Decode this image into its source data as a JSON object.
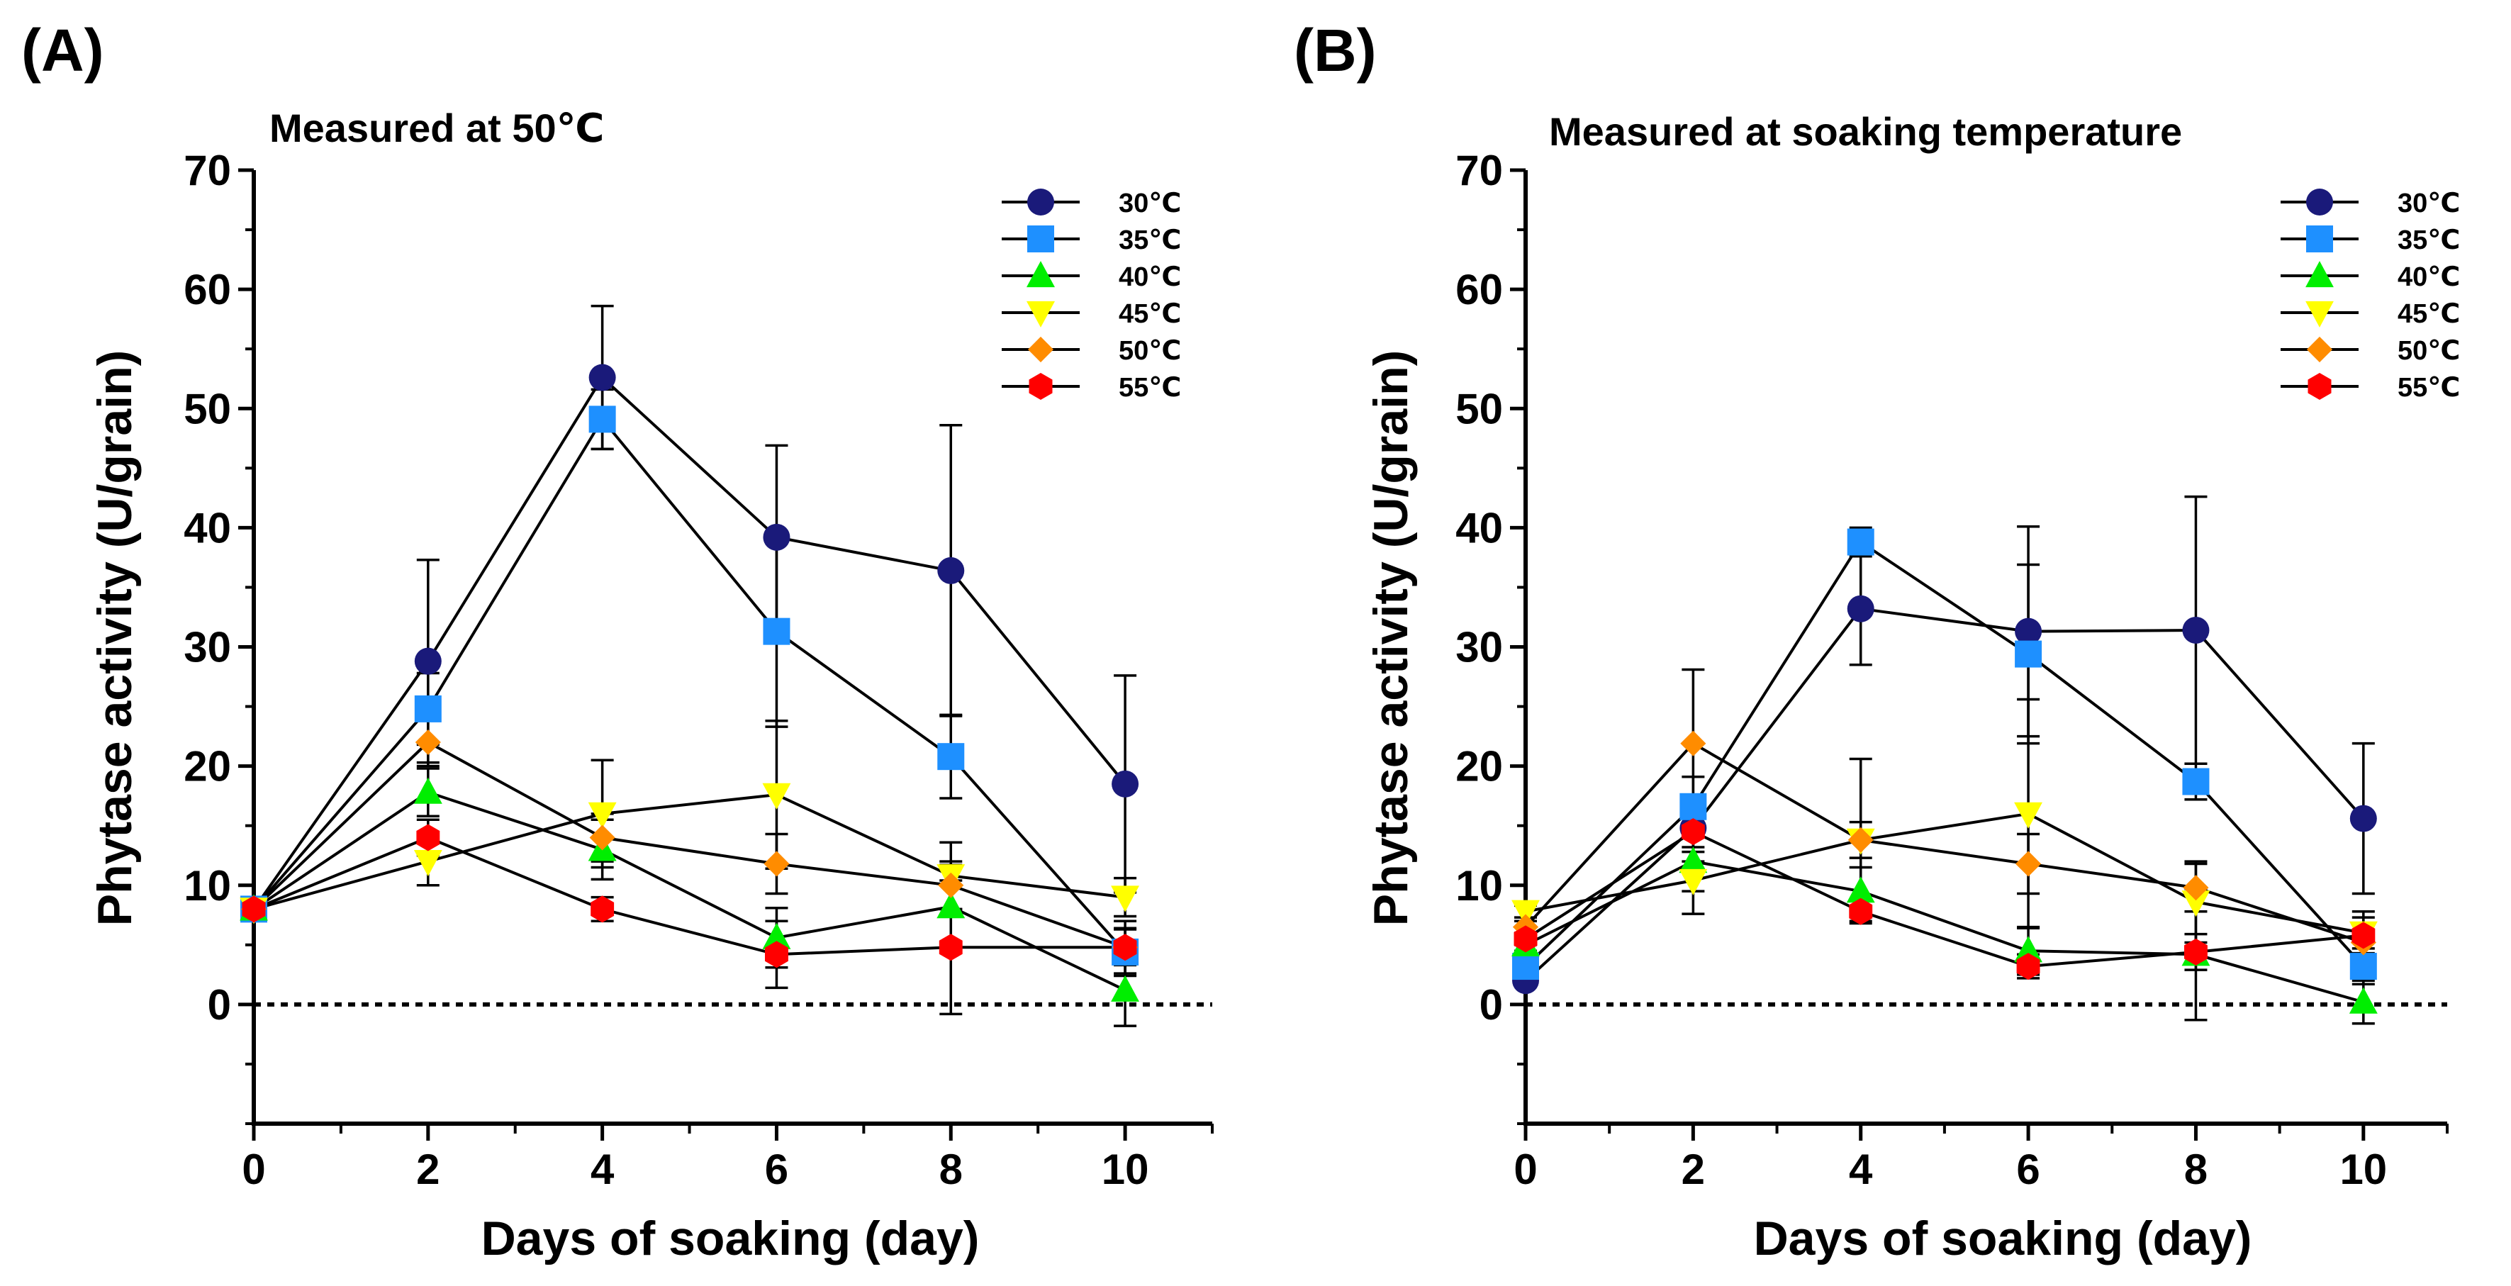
{
  "chart_data": [
    {
      "type": "line",
      "panel_label": "(A)",
      "title": "Measured at 50℃",
      "xlabel": "Days of soaking (day)",
      "ylabel": "Phytase activity (U/grain)",
      "x": [
        0,
        2,
        4,
        6,
        8,
        10
      ],
      "xticks": [
        0,
        2,
        4,
        6,
        8,
        10
      ],
      "yticks": [
        0,
        10,
        20,
        30,
        40,
        50,
        60,
        70
      ],
      "xlim": [
        0,
        11
      ],
      "ylim": [
        -10,
        70
      ],
      "reference_line": 0,
      "legend_position": "top-right",
      "series": [
        {
          "name": "30℃",
          "color": "#1a1a7a",
          "marker": "circle",
          "values": [
            8,
            28.8,
            52.6,
            39.2,
            36.4,
            18.5
          ],
          "errors": [
            0,
            8.5,
            6.0,
            7.7,
            12.2,
            9.1
          ]
        },
        {
          "name": "35℃",
          "color": "#1e90ff",
          "marker": "square",
          "values": [
            8,
            24.8,
            49.1,
            31.3,
            20.8,
            4.4
          ],
          "errors": [
            0,
            3.0,
            2.5,
            8.0,
            3.5,
            2.0
          ]
        },
        {
          "name": "40℃",
          "color": "#00ee00",
          "marker": "triangle-up",
          "values": [
            8,
            17.8,
            13.0,
            5.6,
            8.2,
            1.2
          ],
          "errors": [
            0,
            2.0,
            2.5,
            2.5,
            3.5,
            3.0
          ]
        },
        {
          "name": "45℃",
          "color": "#ffff00",
          "marker": "triangle-down",
          "values": [
            8,
            12.0,
            16.0,
            17.6,
            10.8,
            9.0
          ],
          "errors": [
            0,
            2.0,
            4.5,
            6.2,
            2.8,
            1.6
          ]
        },
        {
          "name": "50℃",
          "color": "#ff8c00",
          "marker": "diamond",
          "values": [
            8,
            22.0,
            14.0,
            11.8,
            10.0,
            4.8
          ],
          "errors": [
            0,
            2.0,
            2.0,
            2.5,
            2.0,
            1.5
          ]
        },
        {
          "name": "55℃",
          "color": "#ff0000",
          "marker": "hexagon",
          "values": [
            8,
            14.0,
            8.0,
            4.2,
            4.8,
            4.8
          ],
          "errors": [
            0,
            1.5,
            1.0,
            2.8,
            5.6,
            2.2
          ]
        }
      ]
    },
    {
      "type": "line",
      "panel_label": "(B)",
      "title": "Measured at soaking temperature",
      "xlabel": "Days of soaking (day)",
      "ylabel": "Phytase activity (U/grain)",
      "x": [
        0,
        2,
        4,
        6,
        8,
        10
      ],
      "xticks": [
        0,
        2,
        4,
        6,
        8,
        10
      ],
      "yticks": [
        0,
        10,
        20,
        30,
        40,
        50,
        60,
        70
      ],
      "xlim": [
        0,
        11
      ],
      "ylim": [
        -10,
        70
      ],
      "reference_line": 0,
      "legend_position": "top-right",
      "series": [
        {
          "name": "30℃",
          "color": "#1a1a7a",
          "marker": "circle",
          "values": [
            2.0,
            14.8,
            33.2,
            31.3,
            31.4,
            15.6
          ],
          "errors": [
            0.5,
            2.0,
            4.7,
            8.8,
            11.2,
            6.3
          ]
        },
        {
          "name": "35℃",
          "color": "#1e90ff",
          "marker": "square",
          "values": [
            3.2,
            16.6,
            38.8,
            29.4,
            18.7,
            3.2
          ],
          "errors": [
            0.5,
            2.5,
            1.2,
            7.5,
            1.5,
            1.5
          ]
        },
        {
          "name": "40℃",
          "color": "#00ee00",
          "marker": "triangle-up",
          "values": [
            5.0,
            12.0,
            9.5,
            4.5,
            4.2,
            0.2
          ],
          "errors": [
            0.5,
            2.5,
            2.0,
            2.0,
            5.5,
            1.8
          ]
        },
        {
          "name": "45℃",
          "color": "#ffff00",
          "marker": "triangle-down",
          "values": [
            7.8,
            10.4,
            13.8,
            16.0,
            8.6,
            6.0
          ],
          "errors": [
            0.5,
            2.8,
            6.8,
            9.6,
            3.4,
            1.8
          ]
        },
        {
          "name": "50℃",
          "color": "#ff8c00",
          "marker": "diamond",
          "values": [
            6.5,
            21.9,
            13.8,
            11.8,
            9.8,
            5.2
          ],
          "errors": [
            0.5,
            6.2,
            1.5,
            2.5,
            2.0,
            1.5
          ]
        },
        {
          "name": "55℃",
          "color": "#ff0000",
          "marker": "hexagon",
          "values": [
            5.5,
            14.5,
            7.8,
            3.2,
            4.4,
            5.8
          ],
          "errors": [
            0.5,
            2.5,
            1.0,
            1.0,
            1.5,
            1.5
          ]
        }
      ]
    }
  ]
}
